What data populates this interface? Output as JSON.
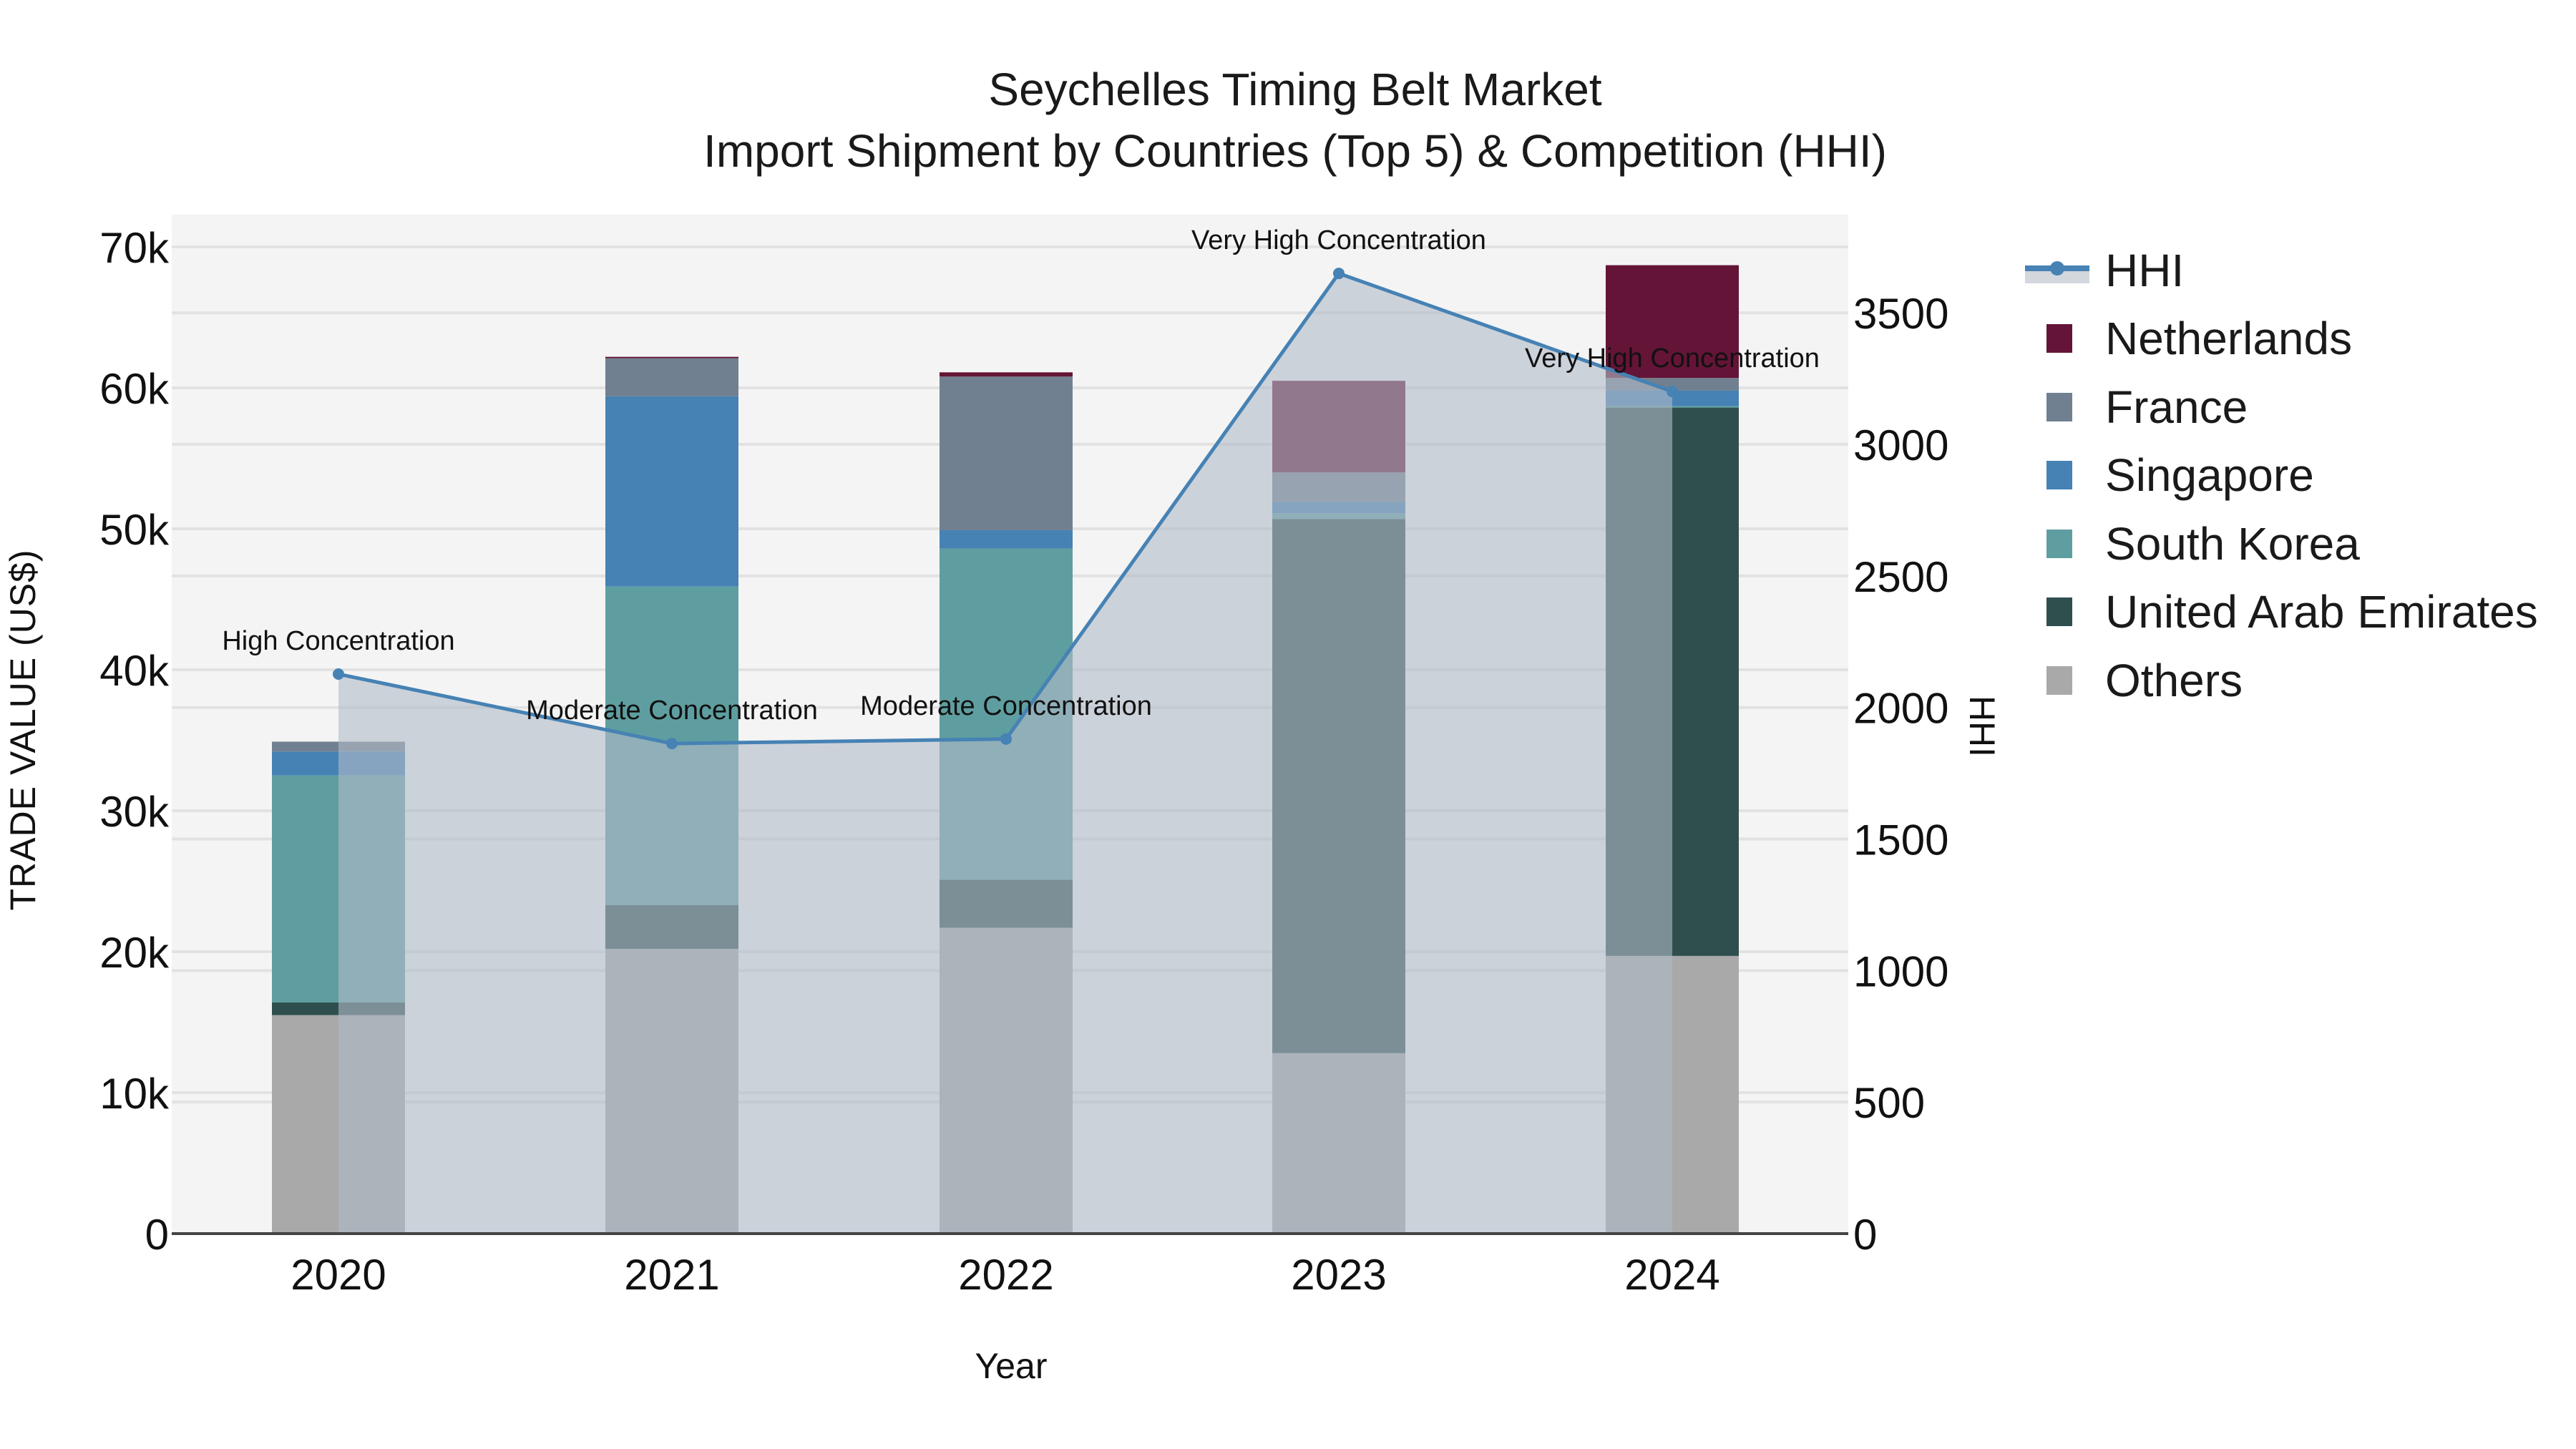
{
  "title": {
    "line1": "Seychelles Timing Belt Market",
    "line2": "Import Shipment by Countries (Top 5) & Competition (HHI)"
  },
  "axes": {
    "x_title": "Year",
    "y_title": "TRADE VALUE (US$)",
    "y2_title": "HHI",
    "y_ticks": [
      "0",
      "10k",
      "20k",
      "30k",
      "40k",
      "50k",
      "60k",
      "70k"
    ],
    "y2_ticks": [
      "0",
      "500",
      "1000",
      "1500",
      "2000",
      "2500",
      "3000",
      "3500"
    ]
  },
  "legend": {
    "items": [
      {
        "label": "HHI",
        "type": "line",
        "color": "#4682b4"
      },
      {
        "label": "Netherlands",
        "type": "box",
        "color": "#641436"
      },
      {
        "label": "France",
        "type": "box",
        "color": "#708090"
      },
      {
        "label": "Singapore",
        "type": "box",
        "color": "#4682b4"
      },
      {
        "label": "South Korea",
        "type": "box",
        "color": "#5f9ea0"
      },
      {
        "label": "United Arab Emirates",
        "type": "box",
        "color": "#2f4f4f"
      },
      {
        "label": "Others",
        "type": "box",
        "color": "#a9a9a9"
      }
    ]
  },
  "colors": {
    "plot_bg": "#f4f4f4",
    "grid": "#e2e2e2",
    "hhi_line": "#4682b4",
    "hhi_fill": "rgba(176,186,200,0.6)",
    "axis_line": "#444444"
  },
  "chart_data": {
    "type": "bar",
    "stacked": true,
    "title": "Seychelles Timing Belt Market - Import Shipment by Countries (Top 5) & Competition (HHI)",
    "xlabel": "Year",
    "ylabel": "TRADE VALUE (US$)",
    "y2label": "HHI",
    "categories": [
      "2020",
      "2021",
      "2022",
      "2023",
      "2024"
    ],
    "ylim": [
      0,
      72500
    ],
    "y2lim": [
      0,
      3880
    ],
    "grid": true,
    "legend_position": "right",
    "series": [
      {
        "name": "Others",
        "color": "#a9a9a9",
        "values": [
          15500,
          20200,
          21700,
          12800,
          19700
        ]
      },
      {
        "name": "United Arab Emirates",
        "color": "#2f4f4f",
        "values": [
          900,
          3100,
          3400,
          37900,
          38900
        ]
      },
      {
        "name": "South Korea",
        "color": "#5f9ea0",
        "values": [
          16100,
          22600,
          23500,
          400,
          100
        ]
      },
      {
        "name": "Singapore",
        "color": "#4682b4",
        "values": [
          1700,
          13500,
          1300,
          800,
          1100
        ]
      },
      {
        "name": "France",
        "color": "#708090",
        "values": [
          700,
          2700,
          10900,
          2100,
          900
        ]
      },
      {
        "name": "Netherlands",
        "color": "#641436",
        "values": [
          0,
          100,
          300,
          6500,
          8000
        ]
      }
    ],
    "line_series": {
      "name": "HHI",
      "axis": "y2",
      "type": "line+area",
      "color": "#4682b4",
      "values": [
        2127,
        1863,
        1880,
        3650,
        3201
      ]
    },
    "annotations": [
      {
        "x": "2020",
        "text": "High Concentration"
      },
      {
        "x": "2021",
        "text": "Moderate Concentration"
      },
      {
        "x": "2022",
        "text": "Moderate Concentration"
      },
      {
        "x": "2023",
        "text": "Very High Concentration"
      },
      {
        "x": "2024",
        "text": "Very High Concentration"
      }
    ]
  }
}
